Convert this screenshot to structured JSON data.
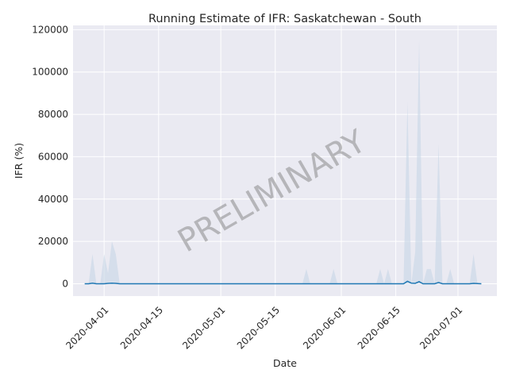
{
  "chart_data": {
    "type": "area",
    "title": "Running Estimate of IFR: Saskatchewan - South",
    "xlabel": "Date",
    "ylabel": "IFR (%)",
    "watermark": "PRELIMINARY",
    "xlim": [
      "2020-03-24",
      "2020-07-11"
    ],
    "ylim": [
      -5800,
      122000
    ],
    "x_ticks": [
      "2020-04-01",
      "2020-04-15",
      "2020-05-01",
      "2020-05-15",
      "2020-06-01",
      "2020-06-15",
      "2020-07-01"
    ],
    "y_ticks": [
      0,
      20000,
      40000,
      60000,
      80000,
      100000,
      120000
    ],
    "grid": true,
    "colors": {
      "background": "#eaeaf2",
      "grid": "#ffffff",
      "line": "#1f77b4",
      "band": "#c7d6e6"
    },
    "x": [
      "2020-03-27",
      "2020-03-28",
      "2020-03-29",
      "2020-03-30",
      "2020-03-31",
      "2020-04-01",
      "2020-04-02",
      "2020-04-03",
      "2020-04-04",
      "2020-04-05",
      "2020-05-22",
      "2020-05-23",
      "2020-05-24",
      "2020-05-29",
      "2020-05-30",
      "2020-05-31",
      "2020-06-10",
      "2020-06-11",
      "2020-06-12",
      "2020-06-13",
      "2020-06-14",
      "2020-06-17",
      "2020-06-18",
      "2020-06-19",
      "2020-06-20",
      "2020-06-21",
      "2020-06-22",
      "2020-06-23",
      "2020-06-24",
      "2020-06-25",
      "2020-06-26",
      "2020-06-27",
      "2020-06-28",
      "2020-06-29",
      "2020-06-30",
      "2020-07-01",
      "2020-07-04",
      "2020-07-05",
      "2020-07-06",
      "2020-07-07"
    ],
    "series": [
      {
        "role": "estimate",
        "values": [
          0,
          0,
          300,
          0,
          0,
          0,
          200,
          300,
          200,
          0,
          0,
          0,
          0,
          0,
          0,
          0,
          0,
          0,
          0,
          0,
          0,
          0,
          1200,
          300,
          200,
          1000,
          0,
          0,
          0,
          0,
          600,
          0,
          0,
          0,
          0,
          0,
          0,
          200,
          100,
          0
        ]
      },
      {
        "role": "lower",
        "values": [
          0,
          0,
          0,
          0,
          0,
          0,
          0,
          0,
          0,
          0,
          0,
          0,
          0,
          0,
          0,
          0,
          0,
          0,
          0,
          0,
          0,
          0,
          0,
          0,
          0,
          0,
          0,
          0,
          0,
          0,
          0,
          0,
          0,
          0,
          0,
          0,
          0,
          0,
          0,
          0
        ]
      },
      {
        "role": "upper",
        "values": [
          0,
          0,
          14000,
          0,
          0,
          14000,
          5000,
          20000,
          14000,
          0,
          0,
          7000,
          0,
          0,
          7000,
          0,
          0,
          7000,
          0,
          7000,
          0,
          0,
          86000,
          0,
          15000,
          115000,
          0,
          7000,
          7000,
          0,
          66000,
          0,
          0,
          7000,
          0,
          0,
          0,
          14000,
          0,
          0
        ]
      }
    ]
  }
}
